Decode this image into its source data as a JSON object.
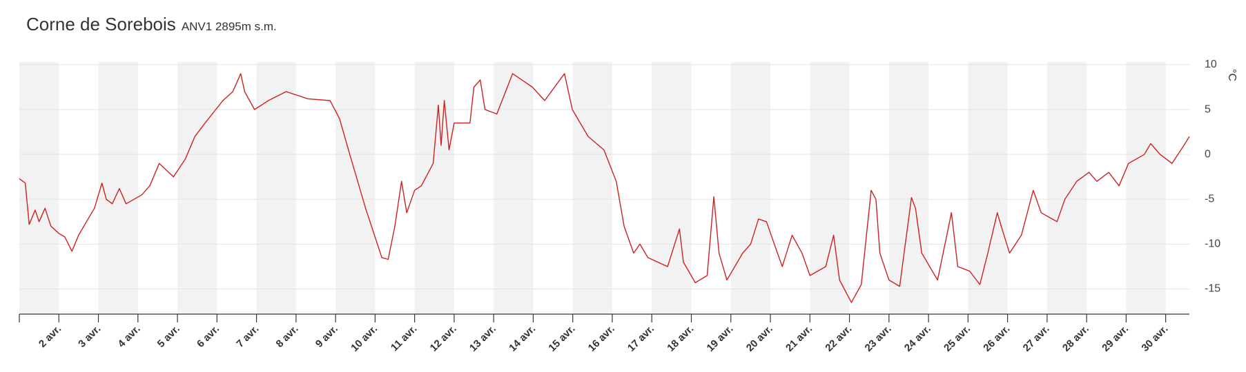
{
  "chart_data": {
    "type": "line",
    "title": "Corne de Sorebois",
    "subtitle": "ANV1 2895m  s.m.",
    "y_label": "°C",
    "grid": true,
    "color": "#cc2020",
    "xlim": [
      1,
      30.6
    ],
    "ylim": [
      -17.8,
      10.3
    ],
    "yticks": [
      -15,
      -10,
      -5,
      0,
      5,
      10
    ],
    "xticks": [
      {
        "value": 2,
        "label": "2 avr."
      },
      {
        "value": 3,
        "label": "3 avr."
      },
      {
        "value": 4,
        "label": "4 avr."
      },
      {
        "value": 5,
        "label": "5 avr."
      },
      {
        "value": 6,
        "label": "6 avr."
      },
      {
        "value": 7,
        "label": "7 avr."
      },
      {
        "value": 8,
        "label": "8 avr."
      },
      {
        "value": 9,
        "label": "9 avr."
      },
      {
        "value": 10,
        "label": "10 avr."
      },
      {
        "value": 11,
        "label": "11 avr."
      },
      {
        "value": 12,
        "label": "12 avr."
      },
      {
        "value": 13,
        "label": "13 avr."
      },
      {
        "value": 14,
        "label": "14 avr."
      },
      {
        "value": 15,
        "label": "15 avr."
      },
      {
        "value": 16,
        "label": "16 avr."
      },
      {
        "value": 17,
        "label": "17 avr."
      },
      {
        "value": 18,
        "label": "18 avr."
      },
      {
        "value": 19,
        "label": "19 avr."
      },
      {
        "value": 20,
        "label": "20 avr."
      },
      {
        "value": 21,
        "label": "21 avr."
      },
      {
        "value": 22,
        "label": "22 avr."
      },
      {
        "value": 23,
        "label": "23 avr."
      },
      {
        "value": 24,
        "label": "24 avr."
      },
      {
        "value": 25,
        "label": "25 avr."
      },
      {
        "value": 26,
        "label": "26 avr."
      },
      {
        "value": 27,
        "label": "27 avr."
      },
      {
        "value": 28,
        "label": "28 avr."
      },
      {
        "value": 29,
        "label": "29 avr."
      },
      {
        "value": 30,
        "label": "30 avr."
      }
    ],
    "x": [
      1.0,
      1.15,
      1.25,
      1.4,
      1.5,
      1.65,
      1.8,
      2.0,
      2.15,
      2.33,
      2.5,
      2.7,
      2.9,
      3.09,
      3.2,
      3.35,
      3.53,
      3.7,
      3.9,
      4.1,
      4.3,
      4.54,
      4.9,
      5.2,
      5.44,
      5.7,
      6.15,
      6.4,
      6.6,
      6.7,
      6.95,
      7.3,
      7.75,
      8.3,
      8.86,
      9.1,
      9.36,
      9.76,
      10.17,
      10.33,
      10.5,
      10.67,
      10.8,
      11.0,
      11.17,
      11.47,
      11.6,
      11.67,
      11.75,
      11.87,
      12.0,
      12.4,
      12.5,
      12.66,
      12.78,
      13.08,
      13.48,
      13.98,
      14.29,
      14.79,
      14.99,
      15.39,
      15.79,
      16.1,
      16.3,
      16.54,
      16.7,
      16.9,
      17.4,
      17.7,
      17.8,
      18.1,
      18.4,
      18.57,
      18.7,
      18.9,
      19.3,
      19.5,
      19.7,
      19.9,
      20.1,
      20.3,
      20.55,
      20.8,
      21.0,
      21.4,
      21.6,
      21.75,
      22.05,
      22.3,
      22.55,
      22.67,
      22.77,
      23.0,
      23.27,
      23.57,
      23.67,
      23.83,
      24.23,
      24.58,
      24.74,
      25.04,
      25.3,
      25.5,
      25.74,
      25.84,
      26.05,
      26.35,
      26.65,
      26.85,
      27.25,
      27.45,
      27.75,
      28.06,
      28.26,
      28.56,
      28.82,
      29.06,
      29.46,
      29.62,
      29.86,
      30.16,
      30.46,
      30.6
    ],
    "series": [
      {
        "name": "°C",
        "color": "#cc2020",
        "values": [
          -2.7,
          -3.2,
          -7.8,
          -6.2,
          -7.5,
          -6.0,
          -8.0,
          -8.8,
          -9.2,
          -10.8,
          -9.0,
          -7.5,
          -6.0,
          -3.2,
          -5.0,
          -5.5,
          -3.8,
          -5.5,
          -5.0,
          -4.5,
          -3.5,
          -1.0,
          -2.5,
          -0.5,
          2.0,
          3.5,
          6.0,
          7.0,
          9.0,
          7.0,
          5.0,
          6.0,
          7.0,
          6.2,
          6.0,
          4.0,
          0.0,
          -6.0,
          -11.5,
          -11.7,
          -8.0,
          -3.0,
          -6.5,
          -4.0,
          -3.5,
          -1.0,
          5.5,
          1.0,
          6.0,
          0.5,
          3.5,
          3.5,
          7.5,
          8.3,
          5.0,
          4.5,
          9.0,
          7.5,
          6.0,
          9.0,
          5.0,
          2.0,
          0.5,
          -3.0,
          -8.0,
          -11.0,
          -10.0,
          -11.5,
          -12.5,
          -8.3,
          -12.0,
          -14.3,
          -13.5,
          -4.7,
          -11.0,
          -14.0,
          -11.0,
          -10.0,
          -7.2,
          -7.5,
          -10.0,
          -12.5,
          -9.0,
          -11.0,
          -13.5,
          -12.5,
          -9.0,
          -14.0,
          -16.5,
          -14.5,
          -4.0,
          -5.0,
          -11.0,
          -14.0,
          -14.7,
          -4.8,
          -6.0,
          -11.0,
          -14.0,
          -6.5,
          -12.5,
          -13.0,
          -14.5,
          -11.0,
          -6.5,
          -8.0,
          -11.0,
          -9.0,
          -4.0,
          -6.5,
          -7.5,
          -5.0,
          -3.0,
          -2.0,
          -3.0,
          -2.0,
          -3.5,
          -1.0,
          0.0,
          1.2,
          0.0,
          -1.0,
          1.0,
          2.0
        ]
      }
    ]
  }
}
